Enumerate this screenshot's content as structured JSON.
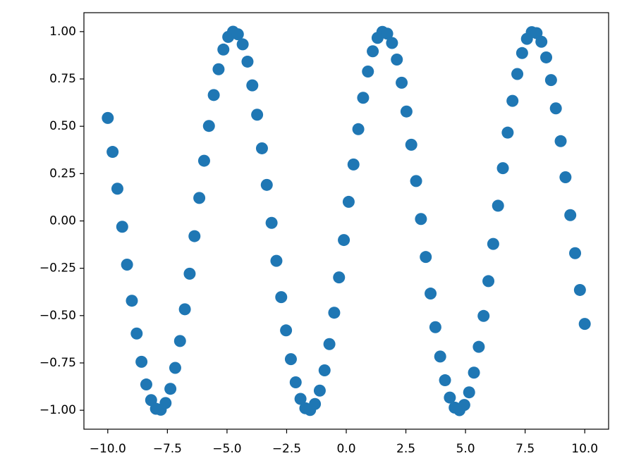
{
  "chart_data": {
    "type": "scatter",
    "color": "#1f77b4",
    "x": [
      -10,
      -9.798,
      -9.596,
      -9.394,
      -9.192,
      -8.99,
      -8.788,
      -8.586,
      -8.384,
      -8.182,
      -7.98,
      -7.778,
      -7.576,
      -7.374,
      -7.172,
      -6.97,
      -6.768,
      -6.566,
      -6.364,
      -6.162,
      -5.96,
      -5.758,
      -5.556,
      -5.354,
      -5.152,
      -4.949,
      -4.747,
      -4.545,
      -4.343,
      -4.141,
      -3.939,
      -3.737,
      -3.535,
      -3.333,
      -3.131,
      -2.929,
      -2.727,
      -2.525,
      -2.323,
      -2.121,
      -1.919,
      -1.717,
      -1.515,
      -1.313,
      -1.111,
      -0.909,
      -0.707,
      -0.505,
      -0.303,
      -0.101,
      0.101,
      0.303,
      0.505,
      0.707,
      0.909,
      1.111,
      1.313,
      1.515,
      1.717,
      1.919,
      2.121,
      2.323,
      2.525,
      2.727,
      2.929,
      3.131,
      3.333,
      3.535,
      3.737,
      3.939,
      4.141,
      4.343,
      4.545,
      4.747,
      4.949,
      5.152,
      5.354,
      5.556,
      5.758,
      5.96,
      6.162,
      6.364,
      6.566,
      6.768,
      6.97,
      7.172,
      7.374,
      7.576,
      7.778,
      7.98,
      8.182,
      8.384,
      8.586,
      8.788,
      8.99,
      9.192,
      9.394,
      9.596,
      9.798,
      10
    ],
    "values": [
      0.544,
      0.3646,
      0.1704,
      -0.0308,
      -0.2308,
      -0.4214,
      -0.5946,
      -0.744,
      -0.8638,
      -0.9465,
      -0.992,
      -0.9971,
      -0.9617,
      -0.8867,
      -0.7761,
      -0.6342,
      -0.4665,
      -0.2788,
      -0.0803,
      0.1213,
      0.318,
      0.5018,
      0.6651,
      0.8013,
      0.9053,
      0.972,
      0.9994,
      0.9859,
      0.9328,
      0.8415,
      0.7162,
      0.5611,
      0.3836,
      0.1905,
      -0.0103,
      -0.2107,
      -0.4026,
      -0.5781,
      -0.7301,
      -0.8524,
      -0.94,
      -0.9893,
      -0.9985,
      -0.9669,
      -0.8963,
      -0.7892,
      -0.6506,
      -0.4847,
      -0.2984,
      -0.1008,
      0.1008,
      0.2984,
      0.4847,
      0.6506,
      0.7892,
      0.8963,
      0.9669,
      0.9985,
      0.9893,
      0.94,
      0.8524,
      0.7301,
      0.5781,
      0.4026,
      0.2107,
      0.0103,
      -0.1905,
      -0.3836,
      -0.5611,
      -0.7162,
      -0.8415,
      -0.9328,
      -0.9859,
      -0.9994,
      -0.972,
      -0.9053,
      -0.8013,
      -0.6651,
      -0.5018,
      -0.318,
      -0.1213,
      0.0803,
      0.2788,
      0.4665,
      0.6342,
      0.7761,
      0.8867,
      0.9617,
      0.9971,
      0.992,
      0.9465,
      0.8638,
      0.744,
      0.5946,
      0.4214,
      0.2308,
      0.0308,
      -0.1704,
      -0.3646,
      -0.544
    ],
    "xlim": [
      -11,
      11
    ],
    "ylim": [
      -1.1,
      1.1
    ],
    "xticks": [
      {
        "value": -10,
        "label": "−10.0"
      },
      {
        "value": -7.5,
        "label": "−7.5"
      },
      {
        "value": -5,
        "label": "−5.0"
      },
      {
        "value": -2.5,
        "label": "−2.5"
      },
      {
        "value": 0,
        "label": "0.0"
      },
      {
        "value": 2.5,
        "label": "2.5"
      },
      {
        "value": 5,
        "label": "5.0"
      },
      {
        "value": 7.5,
        "label": "7.5"
      },
      {
        "value": 10,
        "label": "10.0"
      }
    ],
    "yticks": [
      {
        "value": -1,
        "label": "−1.00"
      },
      {
        "value": -0.75,
        "label": "−0.75"
      },
      {
        "value": -0.5,
        "label": "−0.50"
      },
      {
        "value": -0.25,
        "label": "−0.25"
      },
      {
        "value": 0,
        "label": "0.00"
      },
      {
        "value": 0.25,
        "label": "0.25"
      },
      {
        "value": 0.5,
        "label": "0.50"
      },
      {
        "value": 0.75,
        "label": "0.75"
      },
      {
        "value": 1,
        "label": "1.00"
      }
    ]
  }
}
